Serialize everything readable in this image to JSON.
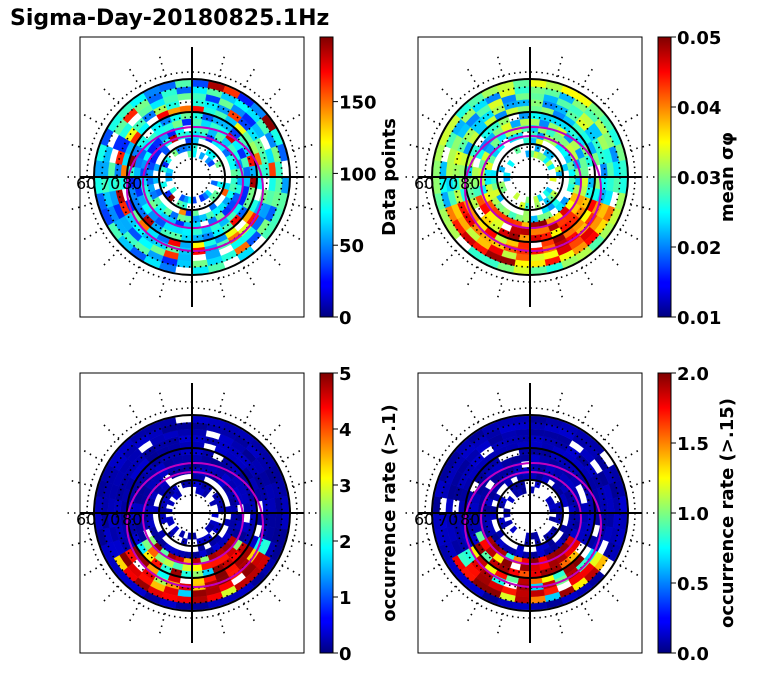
{
  "title": "Sigma-Day-20180825.1Hz",
  "chart_data": [
    {
      "type": "heatmap",
      "projection": "polar",
      "colormap": "jet",
      "colorbar_label": "Data points",
      "clim": [
        0,
        195
      ],
      "colorbar_ticks": [
        "0",
        "50",
        "100",
        "150"
      ],
      "colorbar_tick_values": [
        0,
        50,
        100,
        150
      ],
      "lat_labels": [
        "60",
        "70",
        "80"
      ],
      "pattern": "uniform_mid",
      "grid": true
    },
    {
      "type": "heatmap",
      "projection": "polar",
      "colormap": "jet",
      "colorbar_label": "mean σφ",
      "clim": [
        0.01,
        0.05
      ],
      "colorbar_ticks": [
        "0.01",
        "0.02",
        "0.03",
        "0.04",
        "0.05"
      ],
      "colorbar_tick_values": [
        0.01,
        0.02,
        0.03,
        0.04,
        0.05
      ],
      "lat_labels": [
        "60",
        "70",
        "80"
      ],
      "pattern": "mixed_high_south",
      "grid": true
    },
    {
      "type": "heatmap",
      "projection": "polar",
      "colormap": "jet",
      "colorbar_label": "occurrence rate (>.1)",
      "clim": [
        0,
        5
      ],
      "colorbar_ticks": [
        "0",
        "1",
        "2",
        "3",
        "4",
        "5"
      ],
      "colorbar_tick_values": [
        0,
        1,
        2,
        3,
        4,
        5
      ],
      "lat_labels": [
        "60",
        "70",
        "80"
      ],
      "pattern": "low_with_south_hotspot",
      "grid": true
    },
    {
      "type": "heatmap",
      "projection": "polar",
      "colormap": "jet",
      "colorbar_label": "occurrence rate (>.15)",
      "clim": [
        0,
        2
      ],
      "colorbar_ticks": [
        "0.0",
        "0.5",
        "1.0",
        "1.5",
        "2.0"
      ],
      "colorbar_tick_values": [
        0,
        0.5,
        1.0,
        1.5,
        2.0
      ],
      "lat_labels": [
        "60",
        "70",
        "80"
      ],
      "pattern": "low_with_south_hotspot",
      "grid": true
    }
  ]
}
